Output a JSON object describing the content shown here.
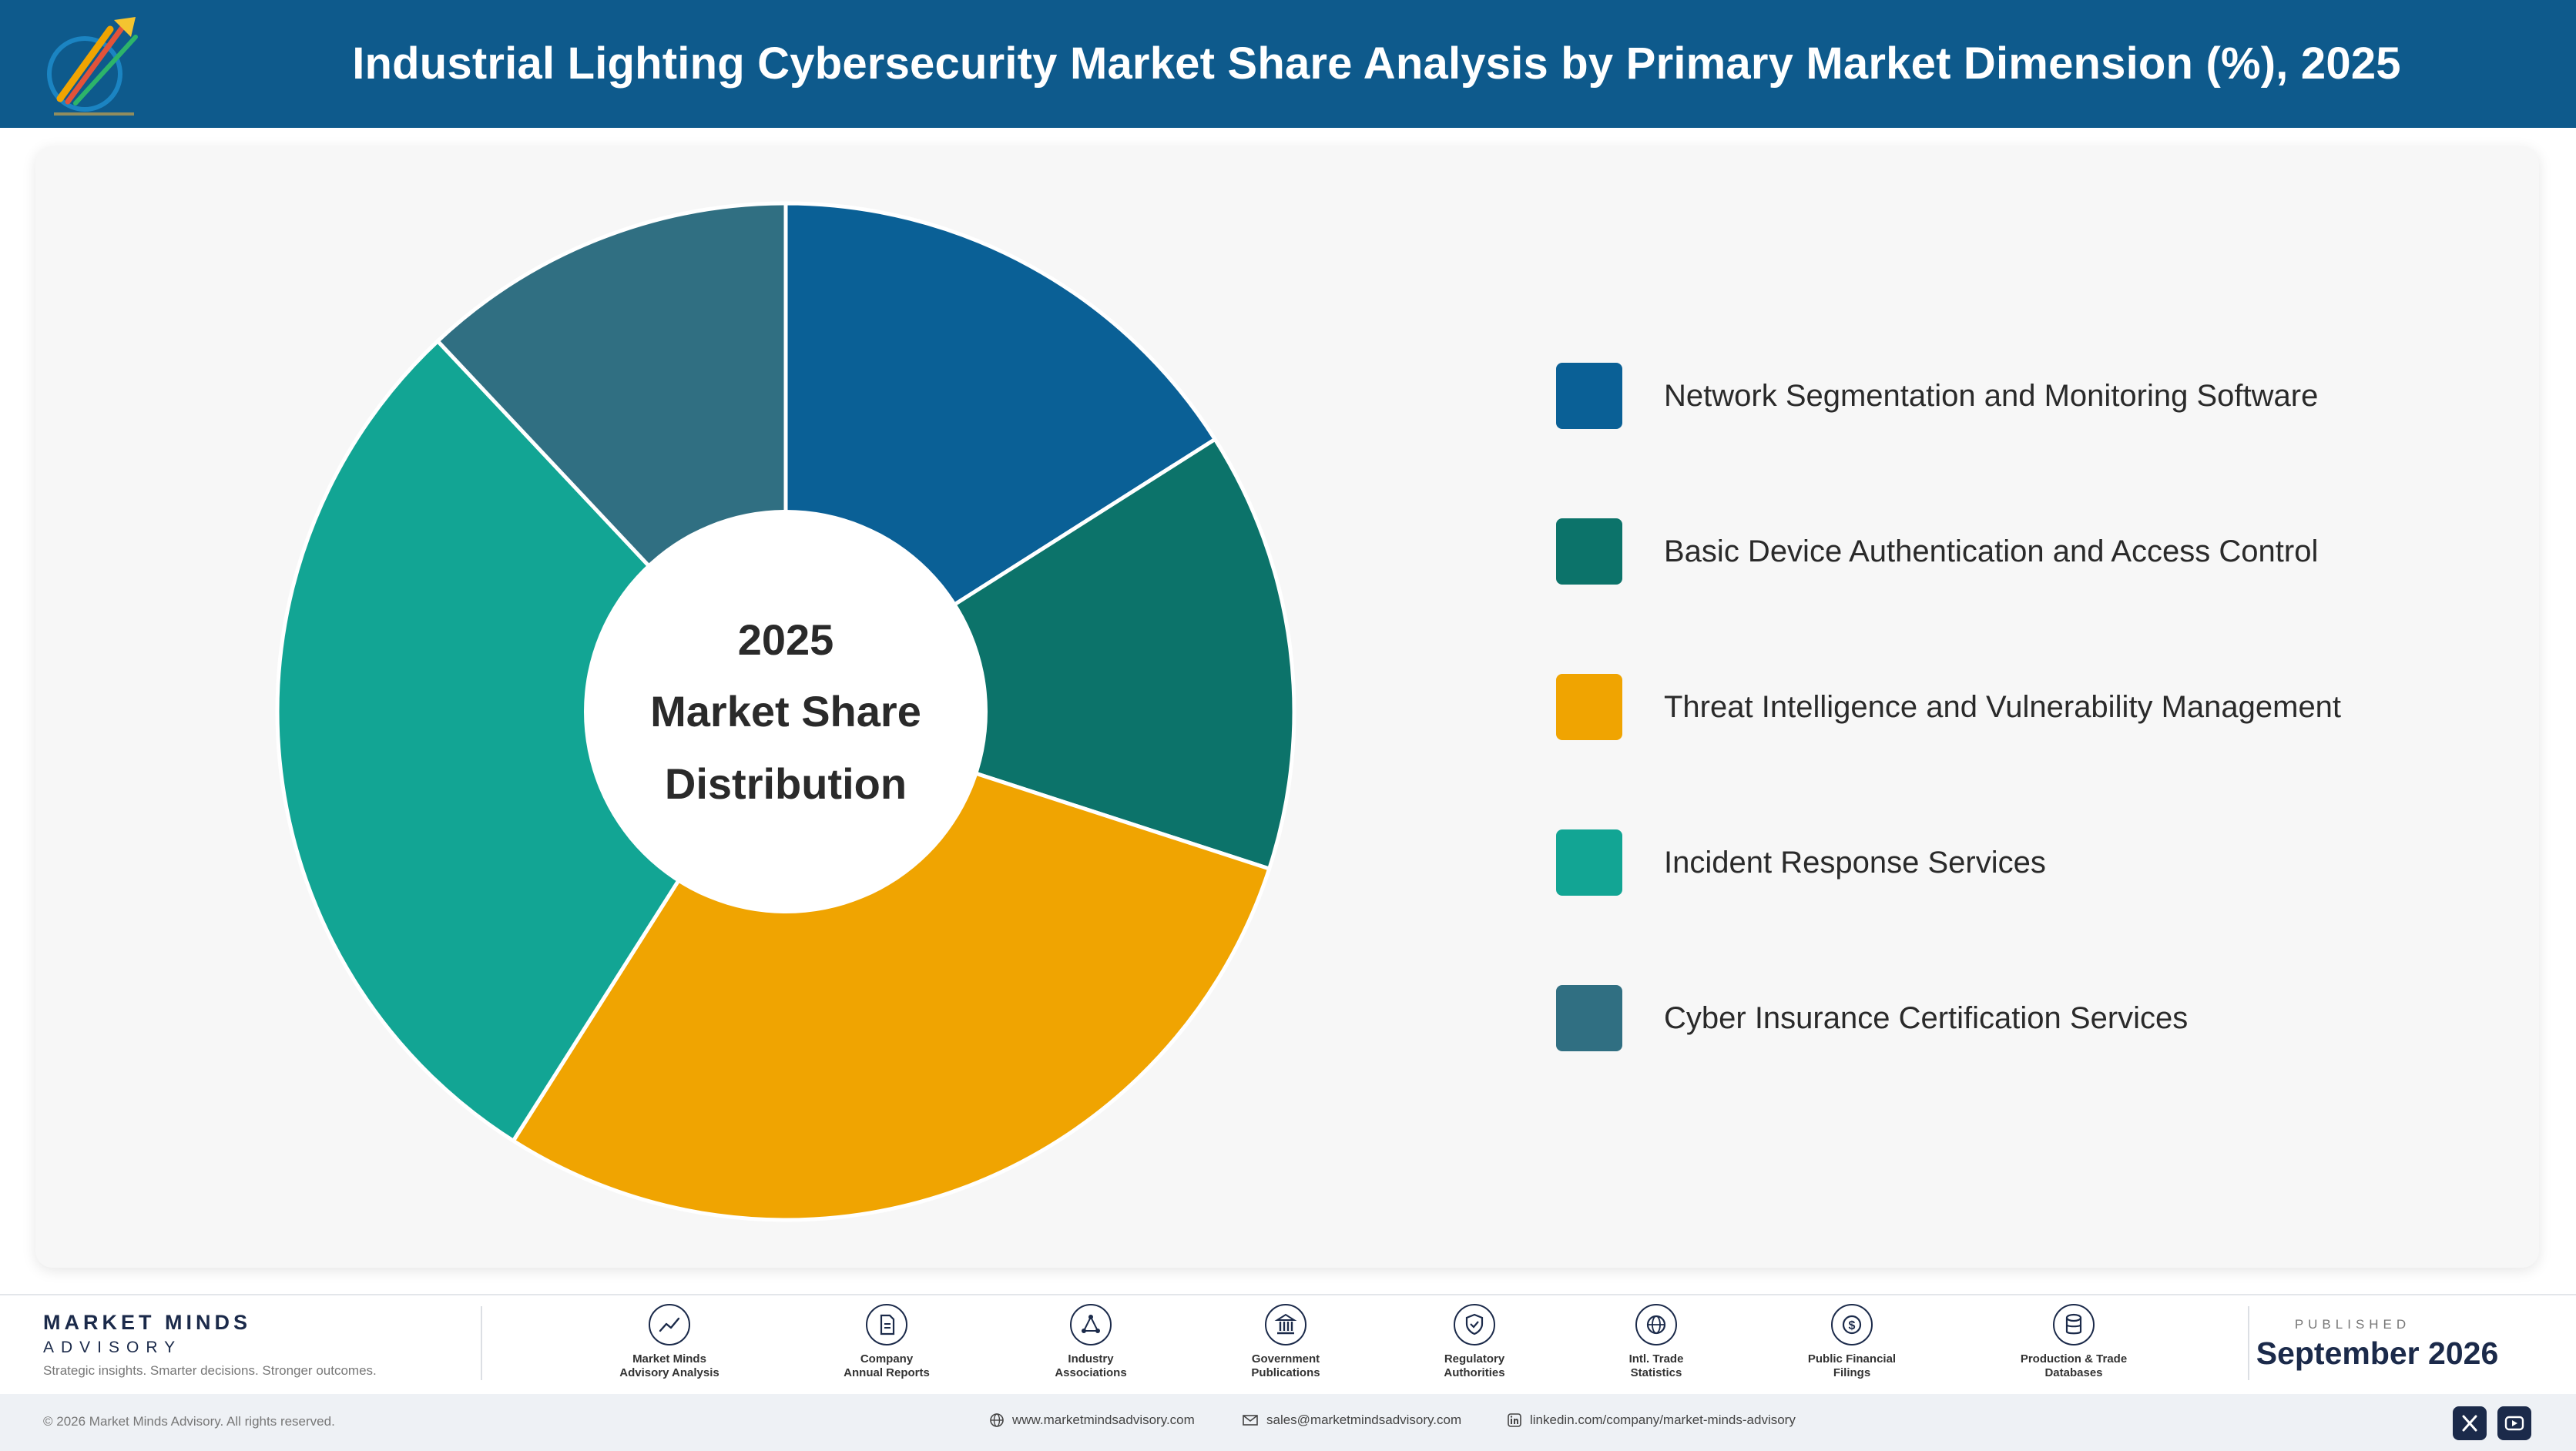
{
  "header": {
    "title": "Industrial Lighting Cybersecurity Market Share Analysis by Primary Market Dimension (%), 2025"
  },
  "center_label": {
    "line1": "2025",
    "line2": "Market Share",
    "line3": "Distribution"
  },
  "colors": {
    "header_bg": "#0e5a8c",
    "network": "#0a6096",
    "basic": "#0c736a",
    "threat": "#f0a401",
    "incident": "#12a594",
    "insurance": "#306f82"
  },
  "chart_data": {
    "type": "pie",
    "title": "Industrial Lighting Cybersecurity Market Share Analysis by Primary Market Dimension (%), 2025",
    "subtitle": "",
    "donut": true,
    "legend_position": "right",
    "categories": [
      "Network Segmentation and Monitoring Software",
      "Basic Device Authentication and Access Control",
      "Threat Intelligence and Vulnerability Management",
      "Incident Response Services",
      "Cyber Insurance Certification Services"
    ],
    "values": [
      16,
      14,
      29,
      29,
      12
    ],
    "colors": [
      "#0a6096",
      "#0c736a",
      "#f0a401",
      "#12a594",
      "#306f82"
    ]
  },
  "footer": {
    "brand_name": "MARKET MINDS",
    "brand_sub": "ADVISORY",
    "tagline": "Strategic insights. Smarter decisions. Stronger outcomes.",
    "sources": [
      {
        "label": "Market Minds\nAdvisory Analysis",
        "icon": "chart-line-icon"
      },
      {
        "label": "Company\nAnnual Reports",
        "icon": "document-icon"
      },
      {
        "label": "Industry\nAssociations",
        "icon": "network-icon"
      },
      {
        "label": "Government\nPublications",
        "icon": "government-building-icon"
      },
      {
        "label": "Regulatory\nAuthorities",
        "icon": "shield-check-icon"
      },
      {
        "label": "Intl. Trade\nStatistics",
        "icon": "globe-icon"
      },
      {
        "label": "Public Financial\nFilings",
        "icon": "dollar-coin-icon"
      },
      {
        "label": "Production & Trade\nDatabases",
        "icon": "database-icon"
      }
    ],
    "published_label": "PUBLISHED",
    "published_date": "September 2026",
    "copyright": "© 2026 Market Minds Advisory. All rights reserved.",
    "website": "www.marketmindsadvisory.com",
    "email": "sales@marketmindsadvisory.com",
    "linkedin": "linkedin.com/company/market-minds-advisory"
  }
}
